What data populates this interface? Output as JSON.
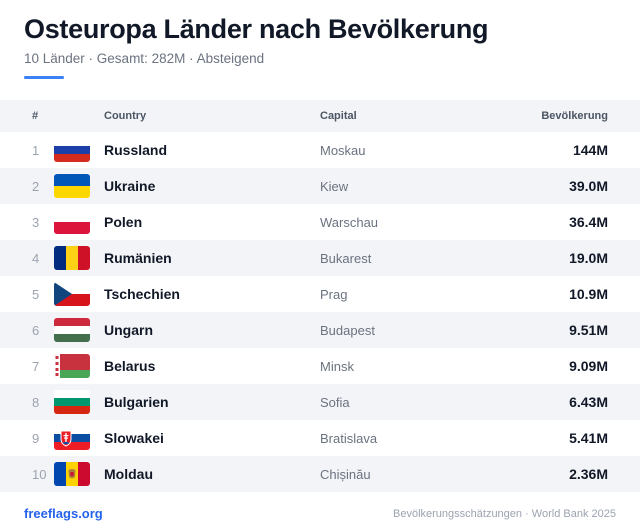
{
  "title": "Osteuropa Länder nach Bevölkerung",
  "subtitle": "10 Länder · Gesamt: 282M · Absteigend",
  "columns": {
    "num": "#",
    "country": "Country",
    "capital": "Capital",
    "population": "Bevölkerung"
  },
  "rows": [
    {
      "rank": "1",
      "country": "Russland",
      "capital": "Moskau",
      "population": "144M",
      "flag": "russia-flag-icon"
    },
    {
      "rank": "2",
      "country": "Ukraine",
      "capital": "Kiew",
      "population": "39.0M",
      "flag": "ukraine-flag-icon"
    },
    {
      "rank": "3",
      "country": "Polen",
      "capital": "Warschau",
      "population": "36.4M",
      "flag": "poland-flag-icon"
    },
    {
      "rank": "4",
      "country": "Rumänien",
      "capital": "Bukarest",
      "population": "19.0M",
      "flag": "romania-flag-icon"
    },
    {
      "rank": "5",
      "country": "Tschechien",
      "capital": "Prag",
      "population": "10.9M",
      "flag": "czechia-flag-icon"
    },
    {
      "rank": "6",
      "country": "Ungarn",
      "capital": "Budapest",
      "population": "9.51M",
      "flag": "hungary-flag-icon"
    },
    {
      "rank": "7",
      "country": "Belarus",
      "capital": "Minsk",
      "population": "9.09M",
      "flag": "belarus-flag-icon"
    },
    {
      "rank": "8",
      "country": "Bulgarien",
      "capital": "Sofia",
      "population": "6.43M",
      "flag": "bulgaria-flag-icon"
    },
    {
      "rank": "9",
      "country": "Slowakei",
      "capital": "Bratislava",
      "population": "5.41M",
      "flag": "slovakia-flag-icon"
    },
    {
      "rank": "10",
      "country": "Moldau",
      "capital": "Chișinău",
      "population": "2.36M",
      "flag": "moldova-flag-icon"
    }
  ],
  "footer": {
    "brand": "freeflags.org",
    "source": "Bevölkerungsschätzungen · World Bank 2025"
  },
  "colors": {
    "accent": "#3b82f6",
    "brand": "#2563eb",
    "row_alt": "#f3f4f8"
  }
}
